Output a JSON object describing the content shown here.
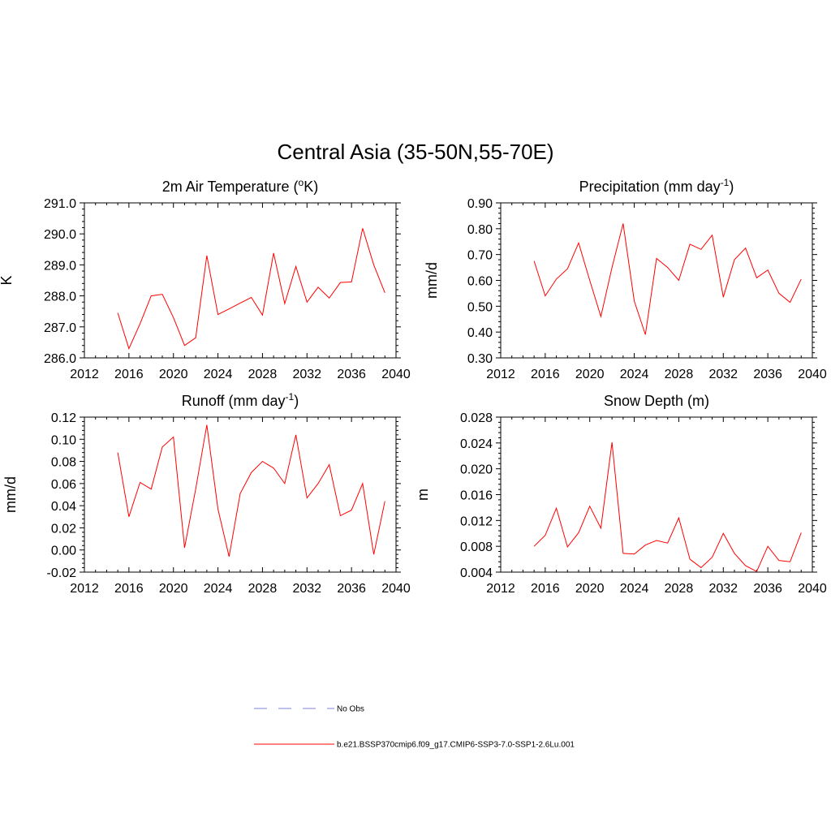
{
  "figure": {
    "title": "Central Asia (35-50N,55-70E)"
  },
  "legend": {
    "placement": "bottom-center",
    "items": [
      {
        "label": "No Obs",
        "color": "#9a9ae0",
        "style": "dashed"
      },
      {
        "label": "b.e21.BSSP370cmip6.f09_g17.CMIP6-SSP3-7.0-SSP1-2.6Lu.001",
        "color": "#ff0000",
        "style": "solid"
      }
    ]
  },
  "chart_data": [
    {
      "type": "line",
      "title": "2m Air Temperature (oK)",
      "title_main": "2m Air Temperature (",
      "title_sup": "o",
      "title_end": "K)",
      "xlabel": "",
      "ylabel": "K",
      "xlim": [
        2012,
        2040
      ],
      "ylim": [
        286.0,
        291.0
      ],
      "xticks": [
        "2012",
        "2016",
        "2020",
        "2024",
        "2028",
        "2032",
        "2036",
        "2040"
      ],
      "yticks": [
        "286.0",
        "287.0",
        "288.0",
        "289.0",
        "290.0",
        "291.0"
      ],
      "grid": false,
      "series": [
        {
          "color": "#ff0000",
          "x": [
            2015,
            2016,
            2017,
            2018,
            2019,
            2020,
            2021,
            2022,
            2023,
            2024,
            2025,
            2026,
            2027,
            2028,
            2029,
            2030,
            2031,
            2032,
            2033,
            2034,
            2035,
            2036,
            2037,
            2038,
            2039
          ],
          "values": [
            287.45,
            286.3,
            287.1,
            288.0,
            288.05,
            287.3,
            286.4,
            286.65,
            289.3,
            287.4,
            287.58,
            287.77,
            287.95,
            287.38,
            289.38,
            287.75,
            288.95,
            287.8,
            288.28,
            287.93,
            288.43,
            288.45,
            290.18,
            289.0,
            288.1
          ]
        }
      ]
    },
    {
      "type": "line",
      "title": "Precipitation (mm day-1)",
      "title_main": "Precipitation (mm day",
      "title_sup": "-1",
      "title_end": ")",
      "xlabel": "",
      "ylabel": "mm/d",
      "xlim": [
        2012,
        2040
      ],
      "ylim": [
        0.3,
        0.9
      ],
      "xticks": [
        "2012",
        "2016",
        "2020",
        "2024",
        "2028",
        "2032",
        "2036",
        "2040"
      ],
      "yticks": [
        "0.30",
        "0.40",
        "0.50",
        "0.60",
        "0.70",
        "0.80",
        "0.90"
      ],
      "grid": false,
      "series": [
        {
          "color": "#ff0000",
          "x": [
            2015,
            2016,
            2017,
            2018,
            2019,
            2020,
            2021,
            2022,
            2023,
            2024,
            2025,
            2026,
            2027,
            2028,
            2029,
            2030,
            2031,
            2032,
            2033,
            2034,
            2035,
            2036,
            2037,
            2038,
            2039
          ],
          "values": [
            0.675,
            0.54,
            0.605,
            0.645,
            0.745,
            0.6,
            0.46,
            0.65,
            0.82,
            0.52,
            0.39,
            0.685,
            0.65,
            0.6,
            0.74,
            0.72,
            0.775,
            0.535,
            0.68,
            0.725,
            0.61,
            0.64,
            0.55,
            0.515,
            0.605
          ]
        }
      ]
    },
    {
      "type": "line",
      "title": "Runoff (mm day-1)",
      "title_main": "Runoff (mm day",
      "title_sup": "-1",
      "title_end": ")",
      "xlabel": "",
      "ylabel": "mm/d",
      "xlim": [
        2012,
        2040
      ],
      "ylim": [
        -0.02,
        0.12
      ],
      "xticks": [
        "2012",
        "2016",
        "2020",
        "2024",
        "2028",
        "2032",
        "2036",
        "2040"
      ],
      "yticks": [
        "-0.02",
        "0.00",
        "0.02",
        "0.04",
        "0.06",
        "0.08",
        "0.10",
        "0.12"
      ],
      "grid": false,
      "series": [
        {
          "color": "#ff0000",
          "x": [
            2015,
            2016,
            2017,
            2018,
            2019,
            2020,
            2021,
            2022,
            2023,
            2024,
            2025,
            2026,
            2027,
            2028,
            2029,
            2030,
            2031,
            2032,
            2033,
            2034,
            2035,
            2036,
            2037,
            2038,
            2039
          ],
          "values": [
            0.088,
            0.03,
            0.061,
            0.055,
            0.093,
            0.102,
            0.002,
            0.055,
            0.113,
            0.037,
            -0.006,
            0.051,
            0.07,
            0.08,
            0.074,
            0.06,
            0.104,
            0.047,
            0.06,
            0.077,
            0.031,
            0.036,
            0.06,
            -0.004,
            0.044
          ]
        }
      ]
    },
    {
      "type": "line",
      "title": "Snow Depth (m)",
      "title_main": "Snow Depth (m)",
      "title_sup": "",
      "title_end": "",
      "xlabel": "",
      "ylabel": "m",
      "xlim": [
        2012,
        2040
      ],
      "ylim": [
        0.004,
        0.028
      ],
      "xticks": [
        "2012",
        "2016",
        "2020",
        "2024",
        "2028",
        "2032",
        "2036",
        "2040"
      ],
      "yticks": [
        "0.004",
        "0.008",
        "0.012",
        "0.016",
        "0.020",
        "0.024",
        "0.028"
      ],
      "grid": false,
      "series": [
        {
          "color": "#ff0000",
          "x": [
            2015,
            2016,
            2017,
            2018,
            2019,
            2020,
            2021,
            2022,
            2023,
            2024,
            2025,
            2026,
            2027,
            2028,
            2029,
            2030,
            2031,
            2032,
            2033,
            2034,
            2035,
            2036,
            2037,
            2038,
            2039
          ],
          "values": [
            0.008,
            0.0097,
            0.0139,
            0.0079,
            0.0101,
            0.0142,
            0.0108,
            0.0241,
            0.0069,
            0.0068,
            0.0082,
            0.0089,
            0.0085,
            0.0124,
            0.006,
            0.0047,
            0.0063,
            0.01,
            0.0069,
            0.005,
            0.0041,
            0.008,
            0.0058,
            0.0056,
            0.0101
          ]
        }
      ]
    }
  ]
}
